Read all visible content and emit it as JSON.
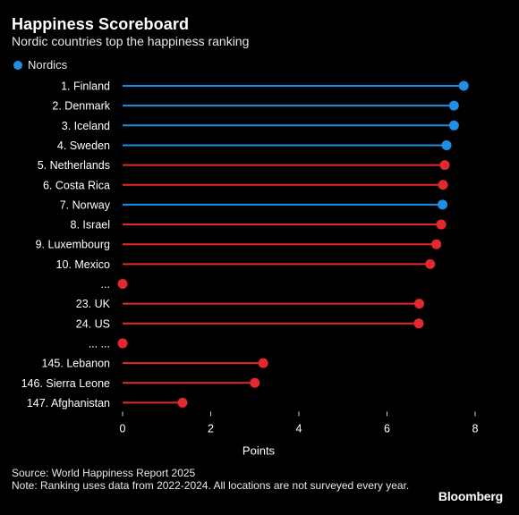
{
  "header": {
    "title": "Happiness Scoreboard",
    "subtitle": "Nordic countries top the happiness ranking"
  },
  "legend": {
    "label": "Nordics",
    "color": "#1f8fe6"
  },
  "colors": {
    "nordic": "#1f8fe6",
    "other": "#e3282e",
    "background": "#000000",
    "text": "#ffffff"
  },
  "chart_data": {
    "type": "lollipop",
    "title": "Happiness Scoreboard",
    "subtitle": "Nordic countries top the happiness ranking",
    "xlabel": "Points",
    "ylabel": "",
    "xlim": [
      0,
      8
    ],
    "xticks": [
      0,
      2,
      4,
      6,
      8
    ],
    "grid": false,
    "legend_position": "top-left",
    "categories": [
      "1. Finland",
      "2. Denmark",
      "3. Iceland",
      "4. Sweden",
      "5. Netherlands",
      "6. Costa Rica",
      "7. Norway",
      "8. Israel",
      "9. Luxembourg",
      "10. Mexico",
      "...",
      "23. UK",
      "24. US",
      "... ...",
      "145. Lebanon",
      "146. Sierra Leone",
      "147. Afghanistan"
    ],
    "values": [
      7.74,
      7.52,
      7.52,
      7.35,
      7.31,
      7.27,
      7.26,
      7.23,
      7.12,
      6.98,
      0,
      6.73,
      6.72,
      0,
      3.19,
      3.0,
      1.36
    ],
    "nordic": [
      true,
      true,
      true,
      true,
      false,
      false,
      true,
      false,
      false,
      false,
      false,
      false,
      false,
      false,
      false,
      false,
      false
    ],
    "series": [
      {
        "name": "Nordics"
      }
    ]
  },
  "footer": {
    "source": "Source: World Happiness Report 2025",
    "note": "Note: Ranking uses data from 2022-2024. All locations are not surveyed every year.",
    "brand": "Bloomberg"
  }
}
